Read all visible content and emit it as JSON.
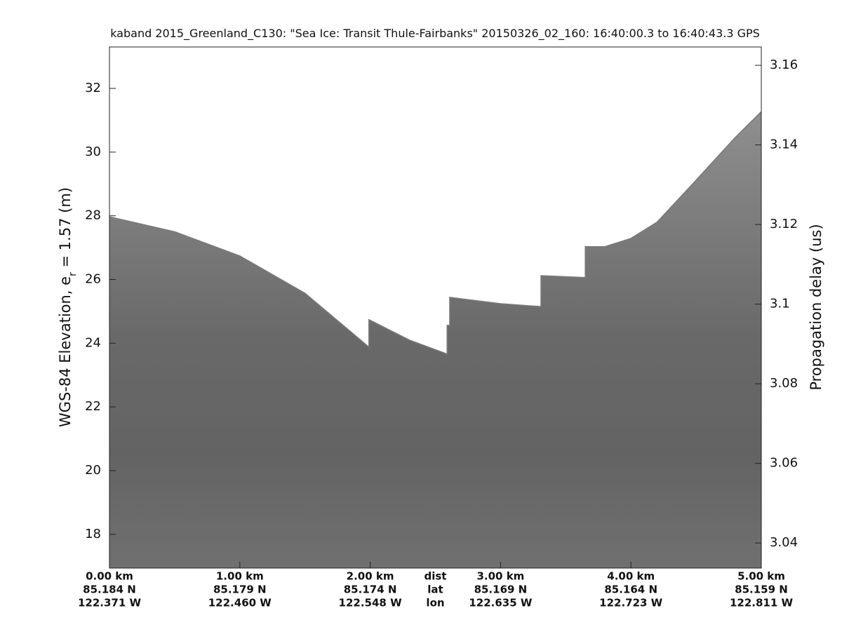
{
  "chart_data": {
    "type": "area",
    "title": "kaband 2015_Greenland_C130: \"Sea Ice: Transit Thule-Fairbanks\"  20150326_02_160: 16:40:00.3 to 16:40:43.3 GPS",
    "ylabel": "WGS-84 Elevation, e",
    "ylabel_sub": "r",
    "ylabel_rest": " = 1.57 (m)",
    "y2label": "Propagation delay (us)",
    "color": "#8e8e8e",
    "x": [
      0,
      0.5,
      1.0,
      1.5,
      1.99,
      1.99,
      2.3,
      2.59,
      2.59,
      2.61,
      2.61,
      3.0,
      3.31,
      3.31,
      3.65,
      3.65,
      3.8,
      4.0,
      4.2,
      4.5,
      4.8,
      5.0
    ],
    "values": [
      27.97,
      27.5,
      26.74,
      25.57,
      23.88,
      24.74,
      24.1,
      23.66,
      24.56,
      24.56,
      25.44,
      25.24,
      25.15,
      26.12,
      26.06,
      27.03,
      27.03,
      27.29,
      27.8,
      29.12,
      30.46,
      31.27
    ],
    "xlim": [
      0,
      5
    ],
    "xticks": [
      {
        "value": 0,
        "label": "0.00 km",
        "lat": "85.184 N",
        "lon": "122.371 W"
      },
      {
        "value": 1,
        "label": "1.00 km",
        "lat": "85.179 N",
        "lon": "122.460 W"
      },
      {
        "value": 2,
        "label": "2.00 km",
        "lat": "85.174 N",
        "lon": "122.548 W"
      },
      {
        "value": 3,
        "label": "3.00 km",
        "lat": "85.169 N",
        "lon": "122.635 W"
      },
      {
        "value": 4,
        "label": "4.00 km",
        "lat": "85.164 N",
        "lon": "122.723 W"
      },
      {
        "value": 5,
        "label": "5.00 km",
        "lat": "85.159 N",
        "lon": "122.811 W"
      }
    ],
    "row_labels": [
      "dist",
      "lat",
      "lon"
    ],
    "ylim": [
      16.94,
      33.3
    ],
    "yticks": [
      18,
      20,
      22,
      24,
      26,
      28,
      30,
      32
    ],
    "y2lim": [
      3.0337,
      3.1646
    ],
    "y2ticks": [
      3.04,
      3.06,
      3.08,
      3.1,
      3.12,
      3.14,
      3.16
    ]
  }
}
